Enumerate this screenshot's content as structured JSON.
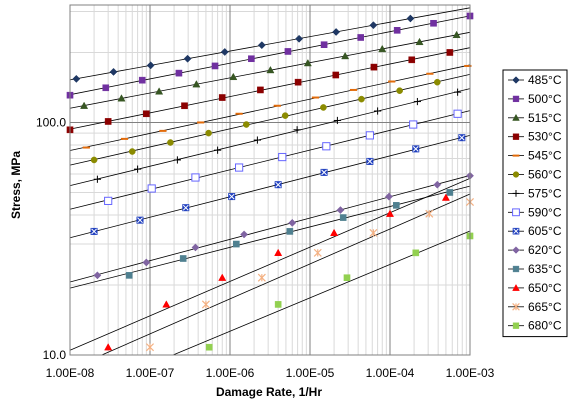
{
  "chart_data": {
    "type": "scatter",
    "xlabel": "Damage Rate, 1/Hr",
    "ylabel": "Stress, MPa",
    "x_scale": "log",
    "y_scale": "log",
    "xlim": [
      1e-08,
      0.001
    ],
    "ylim": [
      10,
      320
    ],
    "x_tick_labels": [
      "1.00E-08",
      "1.00E-07",
      "1.00E-06",
      "1.00E-05",
      "1.00E-04",
      "1.00E-03"
    ],
    "y_tick_labels": [
      "10.0",
      "100.0"
    ],
    "grid": true,
    "legend_position": "right",
    "series": [
      {
        "name": "485°C",
        "marker": "diamond",
        "color": "#1F3864",
        "x": [
          1.2e-08,
          3.5e-08,
          1.02e-07,
          2.95e-07,
          8.6e-07,
          2.5e-06,
          7.3e-06,
          2.12e-05,
          6.2e-05,
          0.00018
        ],
        "y": [
          154,
          165,
          176,
          188,
          201,
          215,
          229,
          245,
          262,
          280
        ]
      },
      {
        "name": "500°C",
        "marker": "square",
        "color": "#7030A0",
        "x": [
          1e-08,
          2.8e-08,
          8e-08,
          2.3e-07,
          6.5e-07,
          1.85e-06,
          5.3e-06,
          1.5e-05,
          4.3e-05,
          0.000123,
          0.00035,
          0.001
        ],
        "y": [
          131,
          141,
          152,
          163,
          175,
          188,
          202,
          216,
          232,
          249,
          267,
          287
        ]
      },
      {
        "name": "515°C",
        "marker": "triangle",
        "color": "#375623",
        "x": [
          1.5e-08,
          4.4e-08,
          1.3e-07,
          3.8e-07,
          1.1e-06,
          3.2e-06,
          9.4e-06,
          2.75e-05,
          8e-05,
          0.000234,
          0.00068
        ],
        "y": [
          118,
          127,
          136,
          146,
          157,
          168,
          180,
          193,
          207,
          222,
          238
        ]
      },
      {
        "name": "530°C",
        "marker": "square",
        "color": "#8B0000",
        "x": [
          1e-08,
          3e-08,
          9e-08,
          2.7e-07,
          8e-07,
          2.4e-06,
          7.1e-06,
          2.1e-05,
          6.3e-05,
          0.000187,
          0.00056
        ],
        "y": [
          93,
          101,
          109,
          118,
          128,
          138,
          149,
          160,
          173,
          186,
          200
        ]
      },
      {
        "name": "545°C",
        "marker": "dash",
        "color": "#E26B0A",
        "x": [
          1.6e-08,
          4.8e-08,
          1.45e-07,
          4.3e-07,
          1.3e-06,
          3.9e-06,
          1.17e-05,
          3.5e-05,
          0.000105,
          0.000315,
          0.00094
        ],
        "y": [
          78,
          85,
          92,
          100,
          109,
          118,
          128,
          138,
          150,
          162,
          175
        ]
      },
      {
        "name": "560°C",
        "marker": "circle",
        "color": "#8B8B00",
        "x": [
          2e-08,
          6e-08,
          1.8e-07,
          5.4e-07,
          1.6e-06,
          4.9e-06,
          1.47e-05,
          4.4e-05,
          0.000132,
          0.00039
        ],
        "y": [
          69,
          75,
          82,
          90,
          98,
          107,
          116,
          126,
          137,
          149
        ]
      },
      {
        "name": "575°C",
        "marker": "plus",
        "color": "#000000",
        "x": [
          2.2e-08,
          7e-08,
          2.2e-07,
          7e-07,
          2.2e-06,
          6.9e-06,
          2.2e-05,
          7e-05,
          0.00022,
          0.0007
        ],
        "y": [
          57,
          63,
          69,
          76,
          84,
          93,
          102,
          112,
          123,
          135
        ]
      },
      {
        "name": "590°C",
        "marker": "square-open",
        "color": "#6666FF",
        "x": [
          3e-08,
          1.05e-07,
          3.7e-07,
          1.3e-06,
          4.5e-06,
          1.6e-05,
          5.6e-05,
          0.000195,
          0.0007
        ],
        "y": [
          46,
          52,
          58,
          64,
          71,
          79,
          88,
          98,
          109
        ]
      },
      {
        "name": "605°C",
        "marker": "square-x",
        "color": "#1F3FBF",
        "x": [
          2e-08,
          7.5e-08,
          2.8e-07,
          1.05e-06,
          4e-06,
          1.5e-05,
          5.6e-05,
          0.00021,
          0.00079
        ],
        "y": [
          34,
          38,
          43,
          48,
          54,
          61,
          68,
          77,
          86
        ]
      },
      {
        "name": "620°C",
        "marker": "diamond",
        "color": "#8064A2",
        "x": [
          2.2e-08,
          9e-08,
          3.7e-07,
          1.5e-06,
          6e-06,
          2.4e-05,
          9.7e-05,
          0.00039,
          0.001
        ],
        "y": [
          22,
          25,
          29,
          33,
          37,
          42,
          48,
          54,
          59
        ]
      },
      {
        "name": "635°C",
        "marker": "square",
        "color": "#4F8090",
        "x": [
          5.5e-08,
          2.6e-07,
          1.2e-06,
          5.6e-06,
          2.6e-05,
          0.00012,
          0.00056
        ],
        "y": [
          22,
          26,
          30,
          34,
          39,
          44,
          50
        ]
      },
      {
        "name": "650°C",
        "marker": "triangle",
        "color": "#FF0000",
        "x": [
          3e-08,
          1.6e-07,
          8e-07,
          4e-06,
          2e-05,
          0.0001,
          0.0005
        ],
        "y": [
          10.8,
          16.5,
          21.5,
          27.5,
          33.5,
          40.5,
          47.5
        ]
      },
      {
        "name": "665°C",
        "marker": "star",
        "color": "#F4B183",
        "x": [
          1e-07,
          5e-07,
          2.5e-06,
          1.25e-05,
          6.2e-05,
          0.00031,
          0.001
        ],
        "y": [
          10.8,
          16.5,
          21.5,
          27.5,
          33.5,
          40.5,
          45.5
        ]
      },
      {
        "name": "680°C",
        "marker": "square",
        "color": "#92D050",
        "x": [
          5.5e-07,
          4e-06,
          2.9e-05,
          0.00021,
          0.001
        ],
        "y": [
          10.8,
          16.5,
          21.5,
          27.5,
          32.5
        ]
      }
    ]
  }
}
